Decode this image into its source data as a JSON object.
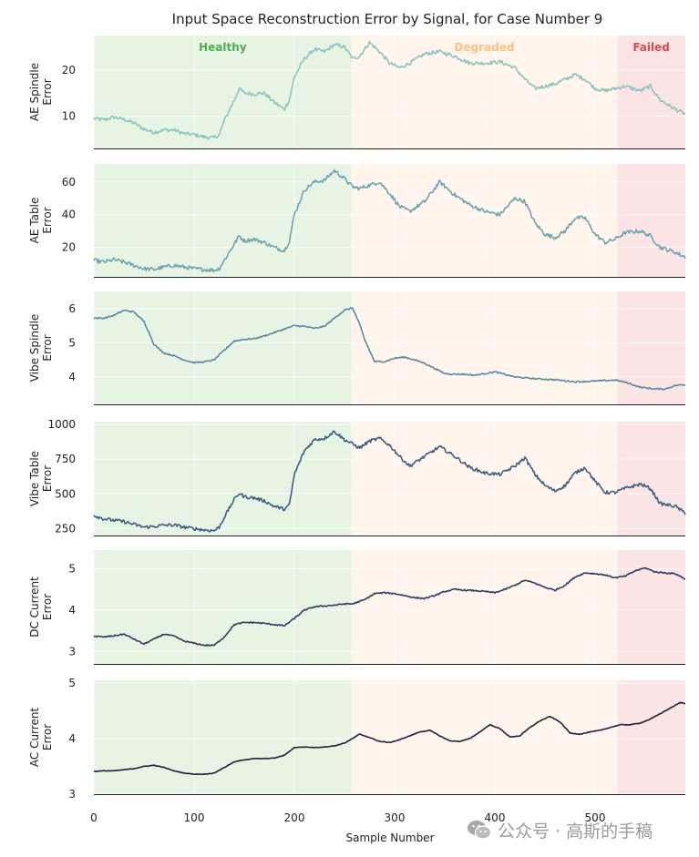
{
  "chart_data": {
    "type": "line",
    "title": "Input Space Reconstruction Error by Signal, for Case Number 9",
    "xlabel": "Sample Number",
    "xlim": [
      0,
      590
    ],
    "xticks": [
      0,
      100,
      200,
      300,
      400,
      500
    ],
    "regions": [
      {
        "name": "Healthy",
        "start": 0,
        "end": 257,
        "color": "#e7f4e4",
        "label_color": "#4caf50"
      },
      {
        "name": "Degraded",
        "start": 257,
        "end": 522,
        "color": "#fff5ec",
        "label_color": "#ffc27a"
      },
      {
        "name": "Failed",
        "start": 522,
        "end": 590,
        "color": "#fbe4e4",
        "label_color": "#e04848"
      }
    ],
    "grid": true,
    "series": [
      {
        "ylabel": [
          "AE Spindle",
          "Error"
        ],
        "color": "#8cc4c4",
        "ylim": [
          3,
          27.5
        ],
        "yticks": [
          10,
          20
        ],
        "noise": 0.4,
        "x": [
          0,
          10,
          20,
          30,
          40,
          50,
          60,
          70,
          80,
          90,
          100,
          110,
          120,
          125,
          130,
          140,
          145,
          150,
          160,
          170,
          180,
          190,
          195,
          200,
          210,
          220,
          230,
          240,
          250,
          258,
          265,
          275,
          285,
          295,
          305,
          315,
          330,
          345,
          360,
          375,
          390,
          405,
          420,
          430,
          440,
          460,
          480,
          490,
          500,
          510,
          520,
          530,
          545,
          555,
          565,
          580,
          590
        ],
        "y": [
          9.5,
          9.2,
          9.8,
          9.3,
          8.5,
          7.2,
          6.5,
          7.0,
          7.0,
          6.2,
          6.0,
          5.5,
          5.3,
          6.0,
          9.0,
          13.5,
          16.0,
          15.0,
          14.8,
          15.0,
          13.0,
          11.5,
          13.5,
          18.5,
          22.5,
          24.5,
          24.0,
          25.5,
          25.0,
          22.5,
          23.0,
          26.0,
          24.0,
          21.5,
          20.5,
          21.5,
          23.5,
          24.0,
          23.0,
          21.5,
          21.5,
          21.8,
          20.5,
          18.0,
          16.0,
          17.0,
          19.0,
          18.0,
          16.0,
          15.5,
          16.0,
          16.5,
          15.5,
          16.5,
          13.5,
          11.5,
          10.5
        ]
      },
      {
        "ylabel": [
          "AE Table",
          "Error"
        ],
        "color": "#6ea4b0",
        "ylim": [
          2,
          71
        ],
        "yticks": [
          20,
          40,
          60
        ],
        "noise": 1.2,
        "x": [
          0,
          10,
          20,
          30,
          40,
          50,
          60,
          70,
          80,
          90,
          100,
          110,
          120,
          125,
          130,
          140,
          145,
          150,
          160,
          170,
          180,
          190,
          195,
          200,
          210,
          220,
          230,
          240,
          250,
          258,
          265,
          275,
          285,
          295,
          305,
          315,
          330,
          345,
          360,
          375,
          390,
          405,
          420,
          430,
          440,
          450,
          460,
          470,
          480,
          490,
          500,
          510,
          520,
          530,
          545,
          555,
          565,
          580,
          590
        ],
        "y": [
          12,
          11,
          12.5,
          11,
          9,
          7,
          6.5,
          8,
          9,
          8,
          7,
          6.5,
          6,
          7,
          12,
          22,
          27,
          24,
          25,
          23,
          20,
          18,
          24,
          40,
          55,
          60,
          61,
          67,
          62,
          57,
          56,
          58,
          60,
          53,
          45,
          42,
          48,
          60,
          52,
          46,
          42,
          40,
          50,
          48,
          35,
          28,
          26,
          30,
          38,
          38,
          28,
          23,
          25,
          29,
          30,
          27,
          20,
          17,
          14
        ]
      },
      {
        "ylabel": [
          "Vibe Spindle",
          "Error"
        ],
        "color": "#5b8aa4",
        "ylim": [
          3.2,
          6.5
        ],
        "yticks": [
          4,
          5,
          6
        ],
        "noise": 0.02,
        "x": [
          0,
          10,
          20,
          30,
          40,
          50,
          55,
          60,
          70,
          80,
          90,
          100,
          110,
          120,
          130,
          140,
          150,
          160,
          170,
          180,
          190,
          200,
          210,
          220,
          230,
          240,
          250,
          258,
          265,
          270,
          280,
          290,
          300,
          310,
          320,
          330,
          340,
          350,
          360,
          370,
          380,
          390,
          400,
          420,
          440,
          460,
          480,
          500,
          520,
          530,
          545,
          560,
          570,
          580,
          590
        ],
        "y": [
          5.72,
          5.72,
          5.8,
          5.95,
          5.9,
          5.62,
          5.3,
          4.95,
          4.7,
          4.62,
          4.5,
          4.42,
          4.44,
          4.5,
          4.78,
          5.05,
          5.1,
          5.12,
          5.2,
          5.3,
          5.4,
          5.5,
          5.48,
          5.42,
          5.48,
          5.72,
          5.95,
          6.02,
          5.55,
          5.1,
          4.45,
          4.45,
          4.55,
          4.58,
          4.5,
          4.4,
          4.25,
          4.1,
          4.08,
          4.08,
          4.05,
          4.1,
          4.15,
          4.0,
          3.95,
          3.92,
          3.86,
          3.88,
          3.91,
          3.85,
          3.7,
          3.65,
          3.65,
          3.75,
          3.78
        ]
      },
      {
        "ylabel": [
          "Vibe Table",
          "Error"
        ],
        "color": "#3e5f84",
        "ylim": [
          200,
          1020
        ],
        "yticks": [
          250,
          500,
          750,
          1000
        ],
        "noise": 12,
        "x": [
          0,
          10,
          20,
          30,
          40,
          50,
          60,
          70,
          80,
          90,
          100,
          110,
          120,
          125,
          130,
          140,
          145,
          150,
          160,
          170,
          180,
          190,
          195,
          200,
          210,
          220,
          230,
          240,
          250,
          258,
          265,
          275,
          285,
          295,
          305,
          315,
          330,
          345,
          360,
          375,
          390,
          405,
          420,
          430,
          440,
          450,
          460,
          470,
          480,
          490,
          500,
          510,
          520,
          530,
          545,
          555,
          565,
          580,
          590
        ],
        "y": [
          345,
          320,
          310,
          300,
          280,
          260,
          265,
          275,
          275,
          260,
          250,
          240,
          235,
          260,
          330,
          460,
          505,
          480,
          470,
          450,
          410,
          390,
          420,
          640,
          810,
          890,
          900,
          950,
          890,
          860,
          830,
          880,
          900,
          850,
          770,
          700,
          770,
          840,
          770,
          690,
          650,
          640,
          700,
          760,
          640,
          560,
          520,
          560,
          650,
          690,
          590,
          510,
          510,
          540,
          570,
          540,
          430,
          410,
          360
        ]
      },
      {
        "ylabel": [
          "DC Current",
          "Error"
        ],
        "color": "#2b3d60",
        "ylim": [
          2.7,
          5.45
        ],
        "yticks": [
          3,
          4,
          5
        ],
        "noise": 0.015,
        "x": [
          0,
          10,
          20,
          30,
          40,
          50,
          60,
          70,
          80,
          90,
          100,
          110,
          120,
          130,
          140,
          150,
          160,
          170,
          180,
          190,
          200,
          210,
          220,
          230,
          240,
          250,
          258,
          270,
          280,
          290,
          300,
          310,
          320,
          330,
          340,
          350,
          360,
          370,
          380,
          390,
          400,
          410,
          420,
          430,
          440,
          450,
          460,
          470,
          480,
          490,
          500,
          510,
          520,
          530,
          540,
          550,
          560,
          570,
          580,
          590
        ],
        "y": [
          3.37,
          3.35,
          3.38,
          3.42,
          3.3,
          3.18,
          3.3,
          3.42,
          3.37,
          3.25,
          3.2,
          3.15,
          3.15,
          3.35,
          3.65,
          3.7,
          3.7,
          3.68,
          3.65,
          3.62,
          3.8,
          4.0,
          4.08,
          4.1,
          4.12,
          4.15,
          4.15,
          4.25,
          4.4,
          4.42,
          4.4,
          4.35,
          4.3,
          4.28,
          4.35,
          4.45,
          4.5,
          4.48,
          4.47,
          4.45,
          4.42,
          4.5,
          4.6,
          4.72,
          4.65,
          4.55,
          4.48,
          4.6,
          4.8,
          4.9,
          4.88,
          4.85,
          4.78,
          4.82,
          4.95,
          5.02,
          4.92,
          4.9,
          4.88,
          4.75
        ]
      },
      {
        "ylabel": [
          "AC Current",
          "Error"
        ],
        "color": "#1c2240",
        "ylim": [
          3,
          5.05
        ],
        "yticks": [
          3,
          4,
          5
        ],
        "noise": 0.005,
        "x": [
          0,
          10,
          20,
          30,
          40,
          50,
          60,
          70,
          80,
          90,
          100,
          110,
          120,
          130,
          140,
          150,
          160,
          170,
          180,
          190,
          200,
          210,
          220,
          230,
          240,
          250,
          258,
          265,
          275,
          285,
          295,
          305,
          315,
          325,
          335,
          345,
          355,
          365,
          375,
          385,
          395,
          405,
          415,
          425,
          435,
          445,
          455,
          465,
          475,
          485,
          495,
          505,
          515,
          525,
          535,
          545,
          555,
          565,
          575,
          585,
          590
        ],
        "y": [
          3.41,
          3.42,
          3.42,
          3.44,
          3.46,
          3.5,
          3.52,
          3.48,
          3.42,
          3.38,
          3.36,
          3.36,
          3.38,
          3.48,
          3.58,
          3.62,
          3.64,
          3.64,
          3.65,
          3.7,
          3.84,
          3.85,
          3.84,
          3.85,
          3.87,
          3.92,
          4.0,
          4.08,
          4.02,
          3.95,
          3.93,
          3.98,
          4.05,
          4.12,
          4.15,
          4.05,
          3.96,
          3.95,
          4.0,
          4.12,
          4.25,
          4.18,
          4.03,
          4.05,
          4.2,
          4.32,
          4.4,
          4.3,
          4.1,
          4.08,
          4.12,
          4.15,
          4.2,
          4.25,
          4.25,
          4.28,
          4.35,
          4.45,
          4.55,
          4.65,
          4.63
        ]
      }
    ]
  },
  "watermark": {
    "icon": "wechat-icon",
    "text": "公众号 · 高斯的手稿"
  }
}
